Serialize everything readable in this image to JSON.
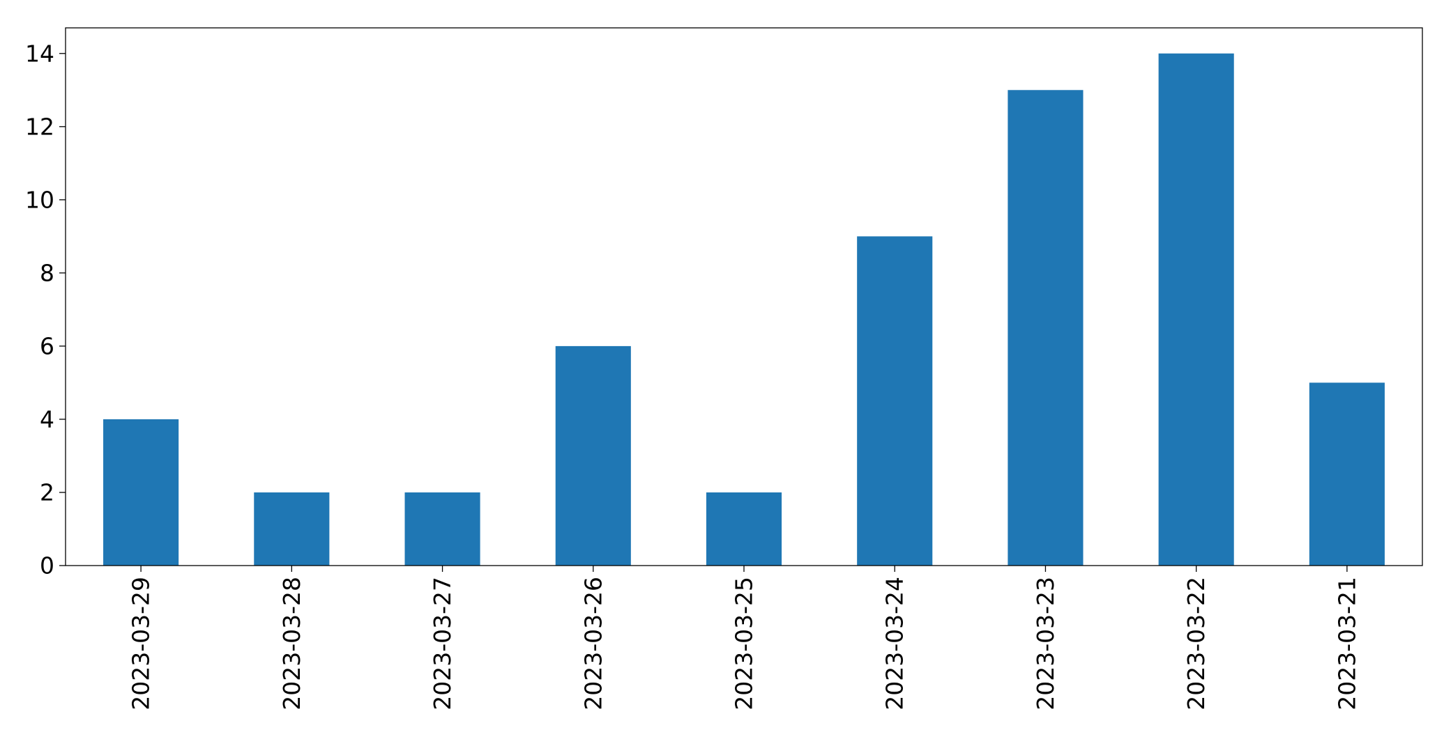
{
  "chart_data": {
    "type": "bar",
    "categories": [
      "2023-03-29",
      "2023-03-28",
      "2023-03-27",
      "2023-03-26",
      "2023-03-25",
      "2023-03-24",
      "2023-03-23",
      "2023-03-22",
      "2023-03-21"
    ],
    "values": [
      4,
      2,
      2,
      6,
      2,
      9,
      13,
      14,
      5
    ],
    "title": "",
    "xlabel": "",
    "ylabel": "",
    "ylim": [
      0,
      14.7
    ],
    "yticks": [
      0,
      2,
      4,
      6,
      8,
      10,
      12,
      14
    ],
    "bar_color": "#1f77b4",
    "grid": false,
    "legend": "none"
  }
}
